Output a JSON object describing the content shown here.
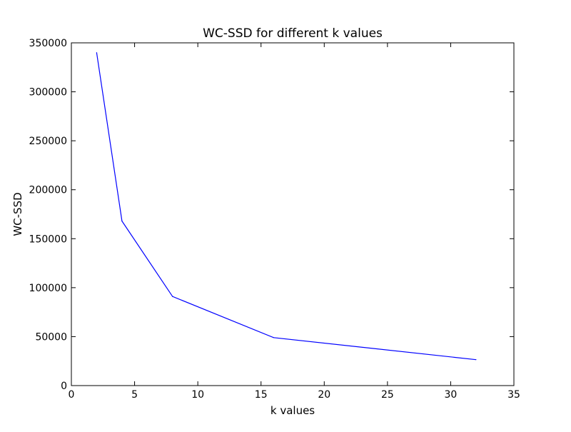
{
  "chart_data": {
    "type": "line",
    "title": "WC-SSD for different k values",
    "xlabel": "k values",
    "ylabel": "WC-SSD",
    "xlim": [
      0,
      35
    ],
    "ylim": [
      0,
      350000
    ],
    "xticks": [
      0,
      5,
      10,
      15,
      20,
      25,
      30,
      35
    ],
    "yticks": [
      0,
      50000,
      100000,
      150000,
      200000,
      250000,
      300000,
      350000
    ],
    "grid": false,
    "legend": "none",
    "series": [
      {
        "color": "#0000ff",
        "x": [
          2,
          4,
          8,
          16,
          32
        ],
        "y": [
          340000,
          168000,
          91000,
          49000,
          26500
        ]
      }
    ]
  }
}
